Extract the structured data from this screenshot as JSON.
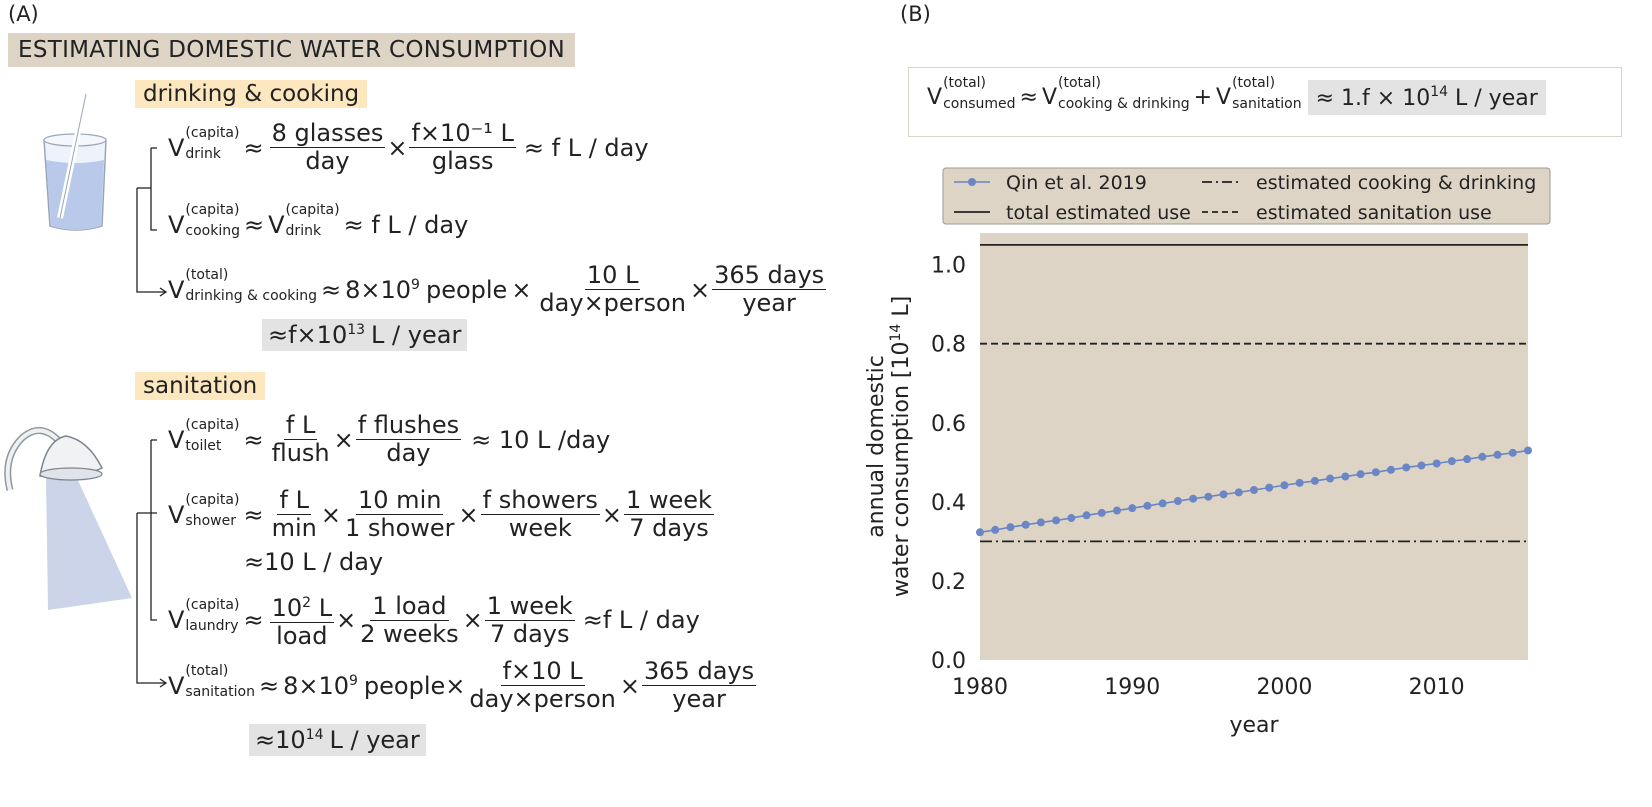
{
  "panel_a": {
    "label": "(A)",
    "title": "ESTIMATING  DOMESTIC WATER CONSUMPTION",
    "drinking_section": {
      "heading": "drinking & cooking",
      "eq_drink": {
        "sup": "(capita)",
        "sub": "drink",
        "n1": "8 glasses",
        "d1": "day",
        "n2": "f×10⁻¹ L",
        "d2": "glass",
        "result": "≈ f L / day"
      },
      "eq_cooking": {
        "sup": "(capita)",
        "sub": "cooking",
        "rhs_sup": "(capita)",
        "rhs_sub": "drink",
        "result": "≈ f L / day"
      },
      "eq_total": {
        "sup": "(total)",
        "sub": "drinking & cooking",
        "people": "people",
        "n1": "10 L",
        "d1": "day×person",
        "n2": "365 days",
        "d2": "year"
      },
      "result": "L / year"
    },
    "sanitation_section": {
      "heading": "sanitation",
      "eq_toilet": {
        "sup": "(capita)",
        "sub": "toilet",
        "n1": "f L",
        "d1": "flush",
        "n2": "f flushes",
        "d2": "day",
        "result": "≈ 10 L /day"
      },
      "eq_shower": {
        "sup": "(capita)",
        "sub": "shower",
        "n1": "f L",
        "d1": "min",
        "n2": "10 min",
        "d2": "1 shower",
        "n3": "f showers",
        "d3": "week",
        "n4": "1 week",
        "d4": "7 days",
        "result": "≈10 L / day"
      },
      "eq_laundry": {
        "sup": "(capita)",
        "sub": "laundry",
        "n1_unit": "L",
        "d1": "load",
        "n2": "1 load",
        "d2": "2 weeks",
        "n3": "1 week",
        "d3": "7 days",
        "result": "≈f L / day"
      },
      "eq_total": {
        "sup": "(total)",
        "sub": "sanitation",
        "people": "people",
        "n1": "f×10 L",
        "d1": "day×person",
        "n2": "365 days",
        "d2": "year"
      },
      "result": "L / year"
    }
  },
  "panel_b": {
    "label": "(B)",
    "formula": {
      "sup": "(total)",
      "sub_consumed": "consumed",
      "sub_cooking": "cooking & drinking",
      "sub_sanitation": "sanitation",
      "result_prefix": "≈ 1.f × 10",
      "result_exp": "14",
      "result_suffix": "L / year"
    }
  },
  "chart_data": {
    "type": "line",
    "xlabel": "year",
    "ylabel_line1": "annual domestic",
    "ylabel_line2": "water consumption [10",
    "ylabel_exp": "14",
    "ylabel_end": " L]",
    "xlim": [
      1980,
      2016
    ],
    "ylim": [
      0,
      1.08
    ],
    "xticks": [
      "1980",
      "1990",
      "2000",
      "2010"
    ],
    "yticks": [
      "0.0",
      "0.2",
      "0.4",
      "0.6",
      "0.8",
      "1.0"
    ],
    "background": "#ddd4c6",
    "series": [
      {
        "name": "Qin et al. 2019",
        "style": "line-markers",
        "color": "#6b86c4",
        "x": [
          1980,
          1981,
          1982,
          1983,
          1984,
          1985,
          1986,
          1987,
          1988,
          1989,
          1990,
          1991,
          1992,
          1993,
          1994,
          1995,
          1996,
          1997,
          1998,
          1999,
          2000,
          2001,
          2002,
          2003,
          2004,
          2005,
          2006,
          2007,
          2008,
          2009,
          2010,
          2011,
          2012,
          2013,
          2014,
          2015,
          2016
        ],
        "y": [
          0.323,
          0.329,
          0.336,
          0.342,
          0.348,
          0.353,
          0.359,
          0.366,
          0.372,
          0.378,
          0.384,
          0.39,
          0.396,
          0.402,
          0.408,
          0.413,
          0.419,
          0.424,
          0.43,
          0.436,
          0.442,
          0.448,
          0.453,
          0.459,
          0.464,
          0.47,
          0.475,
          0.481,
          0.487,
          0.492,
          0.497,
          0.503,
          0.508,
          0.514,
          0.519,
          0.524,
          0.53
        ]
      },
      {
        "name": "estimated cooking & drinking",
        "style": "dashdot",
        "color": "#222222",
        "y_const": 0.3
      },
      {
        "name": "total estimated use",
        "style": "solid",
        "color": "#222222",
        "y_const": 1.05
      },
      {
        "name": "estimated sanitation use",
        "style": "dashed",
        "color": "#222222",
        "y_const": 0.8
      }
    ],
    "legend_position": "top, above plot"
  }
}
